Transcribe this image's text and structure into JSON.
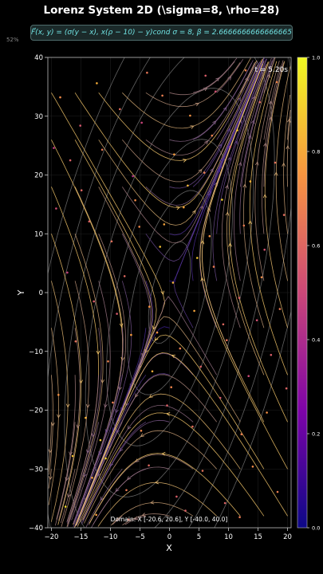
{
  "header": {
    "title": "Lorenz System 2D (\\sigma=8, \\rho=28)",
    "formula": "F⃗(x, y) = (σ(y − x), x(ρ − 10) − y)cond σ = 8, β = 2.6666666666666665, ρ = 28",
    "percent": "52%"
  },
  "overlay": {
    "time_label": "t = 5.20s",
    "domain_label": "Domain: X [-20.6, 20.6], Y [-40.0, 40.0]"
  },
  "colors": {
    "background": "#000000",
    "streamline_low": "#2b0fa0",
    "streamline_high": "#f7c96b",
    "contour": "#8c8c8c",
    "formula_text": "#6fe0e0"
  },
  "chart_data": {
    "type": "scatter",
    "title": "Lorenz System 2D (\\sigma=8, \\rho=28)",
    "xlabel": "X",
    "ylabel": "Y",
    "xlim": [
      -20.6,
      20.6
    ],
    "ylim": [
      -40,
      40
    ],
    "xticks": [
      -20,
      -15,
      -10,
      -5,
      0,
      5,
      10,
      15,
      20
    ],
    "yticks": [
      -40,
      -30,
      -20,
      -10,
      0,
      10,
      20,
      30,
      40
    ],
    "grid": true,
    "colormap": "plasma",
    "colorbar": {
      "min": 0.0,
      "max": 1.0,
      "ticks": [
        0.0,
        0.2,
        0.4,
        0.6,
        0.8,
        1.0
      ]
    },
    "particles": [
      [
        -18.5,
        33.2,
        0.72
      ],
      [
        -15.1,
        28.4,
        0.55
      ],
      [
        -12.3,
        35.6,
        0.81
      ],
      [
        -8.4,
        31.2,
        0.62
      ],
      [
        -4.7,
        28.9,
        0.49
      ],
      [
        -1.2,
        33.5,
        0.68
      ],
      [
        3.5,
        30.1,
        0.74
      ],
      [
        7.8,
        34.2,
        0.52
      ],
      [
        11.5,
        27.6,
        0.88
      ],
      [
        15.3,
        32.4,
        0.61
      ],
      [
        18.2,
        35.8,
        0.71
      ],
      [
        -16.8,
        22.5,
        0.58
      ],
      [
        -11.4,
        24.3,
        0.66
      ],
      [
        -6.2,
        19.8,
        0.43
      ],
      [
        0.8,
        23.5,
        0.77
      ],
      [
        5.9,
        20.4,
        0.69
      ],
      [
        10.3,
        24.8,
        0.57
      ],
      [
        13.7,
        18.9,
        0.82
      ],
      [
        17.9,
        22.1,
        0.64
      ],
      [
        -19.2,
        14.3,
        0.52
      ],
      [
        -13.6,
        12.1,
        0.59
      ],
      [
        -9.8,
        8.7,
        0.63
      ],
      [
        -5.1,
        11.2,
        0.71
      ],
      [
        -1.6,
        7.8,
        0.86
      ],
      [
        2.4,
        14.5,
        0.78
      ],
      [
        6.8,
        9.6,
        0.74
      ],
      [
        8.9,
        15.8,
        0.91
      ],
      [
        12.6,
        11.4,
        0.67
      ],
      [
        16.1,
        7.3,
        0.54
      ],
      [
        19.4,
        13.2,
        0.62
      ],
      [
        -17.3,
        3.4,
        0.48
      ],
      [
        -12.8,
        -1.5,
        0.56
      ],
      [
        -7.6,
        2.8,
        0.61
      ],
      [
        -3.4,
        -2.4,
        0.74
      ],
      [
        0.6,
        1.7,
        0.83
      ],
      [
        4.2,
        -3.1,
        0.79
      ],
      [
        7.5,
        4.4,
        0.66
      ],
      [
        11.8,
        -0.9,
        0.58
      ],
      [
        15.6,
        2.6,
        0.72
      ],
      [
        18.7,
        -2.8,
        0.65
      ],
      [
        -15.9,
        -8.3,
        0.63
      ],
      [
        -10.4,
        -11.7,
        0.69
      ],
      [
        -6.5,
        -7.2,
        0.77
      ],
      [
        -2.9,
        -13.4,
        0.81
      ],
      [
        1.8,
        -9.5,
        0.68
      ],
      [
        5.3,
        -12.6,
        0.59
      ],
      [
        9.7,
        -8.1,
        0.64
      ],
      [
        13.4,
        -14.2,
        0.51
      ],
      [
        17.2,
        -10.6,
        0.57
      ],
      [
        -18.8,
        -17.4,
        0.74
      ],
      [
        -14.2,
        -21.3,
        0.82
      ],
      [
        -9.6,
        -18.7,
        0.67
      ],
      [
        -4.8,
        -23.5,
        0.71
      ],
      [
        -0.4,
        -19.2,
        0.58
      ],
      [
        3.9,
        -22.8,
        0.62
      ],
      [
        8.6,
        -17.9,
        0.55
      ],
      [
        12.2,
        -24.1,
        0.68
      ],
      [
        16.5,
        -20.4,
        0.73
      ],
      [
        -16.4,
        -27.8,
        0.86
      ],
      [
        -13.1,
        -31.5,
        0.79
      ],
      [
        -10.8,
        -28.2,
        0.92
      ],
      [
        -7.3,
        -33.6,
        0.66
      ],
      [
        -3.5,
        -29.4,
        0.61
      ],
      [
        1.2,
        -34.7,
        0.57
      ],
      [
        5.6,
        -30.3,
        0.64
      ],
      [
        9.4,
        -35.8,
        0.59
      ],
      [
        14.1,
        -29.6,
        0.72
      ],
      [
        18.3,
        -33.9,
        0.68
      ],
      [
        -17.6,
        -36.4,
        0.94
      ],
      [
        -12.4,
        -37.8,
        0.77
      ],
      [
        -6.9,
        -38.6,
        0.63
      ],
      [
        2.7,
        -37.1,
        0.58
      ],
      [
        11.9,
        -38.2,
        0.66
      ],
      [
        -19.6,
        24.6,
        0.45
      ],
      [
        19.8,
        -16.3,
        0.59
      ],
      [
        -5.8,
        15.7,
        0.72
      ],
      [
        3.1,
        18.2,
        0.84
      ],
      [
        7.2,
        26.7,
        0.69
      ],
      [
        -8.9,
        -3.6,
        0.56
      ],
      [
        9.1,
        -5.4,
        0.61
      ],
      [
        -2.1,
        -6.8,
        0.75
      ],
      [
        0.3,
        -16.1,
        0.7
      ],
      [
        -11.7,
        -25.1,
        0.88
      ],
      [
        14.8,
        -4.7,
        0.53
      ],
      [
        -14.9,
        17.4,
        0.6
      ],
      [
        6.1,
        36.9,
        0.57
      ],
      [
        -3.8,
        37.4,
        0.65
      ],
      [
        12.9,
        37.8,
        0.7
      ],
      [
        4.7,
        5.9,
        0.87
      ],
      [
        -0.9,
        11.6,
        0.79
      ]
    ]
  }
}
